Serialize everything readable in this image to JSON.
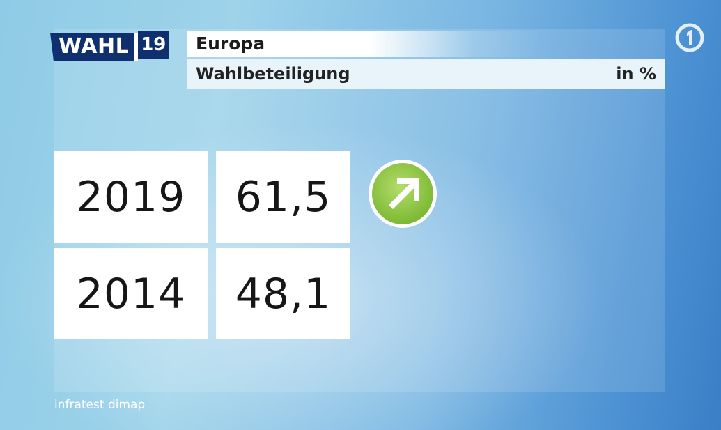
{
  "header": {
    "logo_word": "WAHL",
    "logo_year": "19",
    "title": "Europa",
    "subtitle": "Wahlbeteiligung",
    "unit": "in %"
  },
  "channel_logo_icon": "ard-one-logo-icon",
  "rows": [
    {
      "year": "2019",
      "value": "61,5"
    },
    {
      "year": "2014",
      "value": "48,1"
    }
  ],
  "trend": {
    "icon": "arrow-up-right-icon",
    "color": "#8cc63f",
    "direction": "up"
  },
  "source": "infratest dimap",
  "colors": {
    "logo_navy": "#0f2f6e",
    "trend_green": "#8cc63f"
  }
}
